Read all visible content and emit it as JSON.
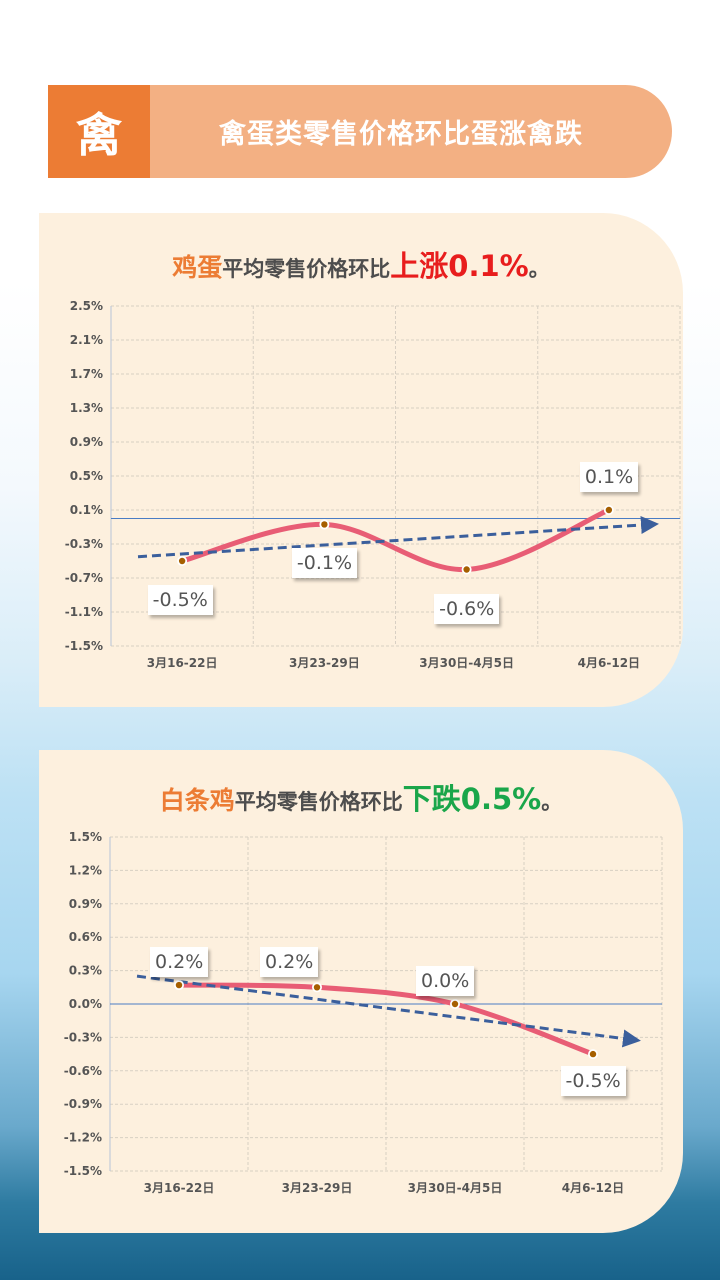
{
  "banner": {
    "tag_char": "禽",
    "title": "禽蛋类零售价格环比蛋涨禽跌"
  },
  "colors": {
    "accent_orange": "#ec7c34",
    "banner_bar": "#f3b083",
    "card_bg": "#fdf0de",
    "up_red": "#e81d1d",
    "down_green": "#1aa64a",
    "line_red": "#e85d75",
    "trend_blue": "#3b5f9c",
    "zero_line": "#4a7cc4",
    "marker": "#a65f00"
  },
  "charts": [
    {
      "title_product": "鸡蛋",
      "title_mid": "平均零售价格环比",
      "title_change": "上涨0.1%",
      "title_end": "。",
      "labels": [
        "-0.5%",
        "-0.1%",
        "-0.6%",
        "0.1%"
      ]
    },
    {
      "title_product": "白条鸡",
      "title_mid": "平均零售价格环比",
      "title_change": "下跌0.5%",
      "title_end": "。",
      "labels": [
        "0.2%",
        "0.2%",
        "0.0%",
        "-0.5%"
      ]
    }
  ],
  "chart_data": [
    {
      "type": "line",
      "title": "鸡蛋平均零售价格环比上涨0.1%。",
      "categories": [
        "3月16-22日",
        "3月23-29日",
        "3月30日-4月5日",
        "4月6-12日"
      ],
      "series": [
        {
          "name": "鸡蛋平均零售价格环比",
          "values": [
            -0.5,
            -0.1,
            -0.6,
            0.1
          ],
          "style": "smooth line with markers"
        },
        {
          "name": "趋势线",
          "values": [
            -0.45,
            -0.33,
            -0.2,
            -0.07
          ],
          "style": "dashed arrow"
        }
      ],
      "yticks": [
        "2.5%",
        "2.1%",
        "1.7%",
        "1.3%",
        "0.9%",
        "0.5%",
        "0.1%",
        "-0.3%",
        "-0.7%",
        "-1.1%",
        "-1.5%"
      ],
      "ylim": [
        -1.5,
        2.5
      ],
      "xlabel": "",
      "ylabel": "",
      "grid": true,
      "legend": "none"
    },
    {
      "type": "line",
      "title": "白条鸡平均零售价格环比下跌0.5%。",
      "categories": [
        "3月16-22日",
        "3月23-29日",
        "3月30日-4月5日",
        "4月6-12日"
      ],
      "series": [
        {
          "name": "白条鸡平均零售价格环比",
          "values": [
            0.2,
            0.2,
            0.0,
            -0.5
          ],
          "style": "smooth line with markers"
        },
        {
          "name": "趋势线",
          "values": [
            0.25,
            0.08,
            -0.12,
            -0.32
          ],
          "style": "dashed arrow"
        }
      ],
      "yticks": [
        "1.5%",
        "1.2%",
        "0.9%",
        "0.6%",
        "0.3%",
        "0.0%",
        "-0.3%",
        "-0.6%",
        "-0.9%",
        "-1.2%",
        "-1.5%"
      ],
      "ylim": [
        -1.5,
        1.5
      ],
      "xlabel": "",
      "ylabel": "",
      "grid": true,
      "legend": "none"
    }
  ]
}
